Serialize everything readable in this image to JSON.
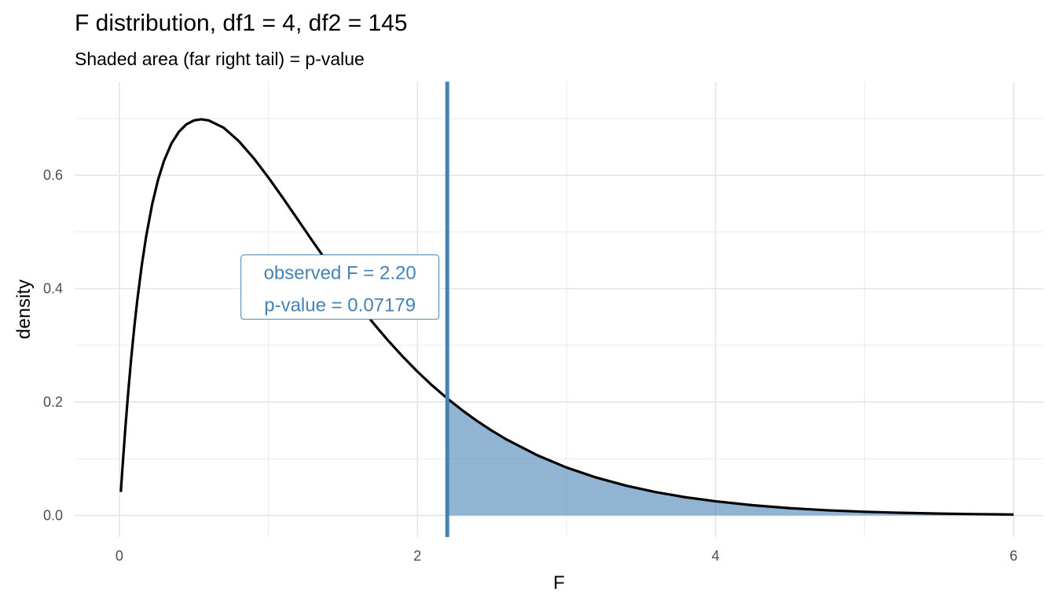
{
  "chart_data": {
    "type": "area",
    "title": "F distribution, df1 = 4, df2 = 145",
    "subtitle": "Shaded area (far right tail) = p-value",
    "xlabel": "F",
    "ylabel": "density",
    "xlim": [
      -0.3,
      6.2
    ],
    "ylim": [
      -0.038,
      0.765
    ],
    "x_ticks": [
      0,
      2,
      4,
      6
    ],
    "x_tick_labels": [
      "0",
      "2",
      "4",
      "6"
    ],
    "y_ticks": [
      0.0,
      0.2,
      0.4,
      0.6
    ],
    "y_tick_labels": [
      "0.0",
      "0.2",
      "0.4",
      "0.6"
    ],
    "grid": true,
    "series": [
      {
        "kind": "density-curve",
        "color": "#000000",
        "x": [
          0.01,
          0.02,
          0.04,
          0.06,
          0.08,
          0.1,
          0.12,
          0.15,
          0.18,
          0.22,
          0.26,
          0.3,
          0.35,
          0.4,
          0.45,
          0.5,
          0.55,
          0.6,
          0.7,
          0.8,
          0.9,
          1.0,
          1.1,
          1.2,
          1.3,
          1.4,
          1.5,
          1.6,
          1.7,
          1.8,
          1.9,
          2.0,
          2.1,
          2.2,
          2.3,
          2.4,
          2.5,
          2.6,
          2.8,
          3.0,
          3.2,
          3.4,
          3.6,
          3.8,
          4.0,
          4.25,
          4.5,
          4.75,
          5.0,
          5.25,
          5.5,
          5.75,
          6.0
        ],
        "y": [
          0.0415,
          0.0809,
          0.1537,
          0.2194,
          0.2785,
          0.3315,
          0.379,
          0.4405,
          0.4925,
          0.5486,
          0.5923,
          0.6257,
          0.6563,
          0.6768,
          0.6898,
          0.6966,
          0.6986,
          0.6966,
          0.6837,
          0.6606,
          0.6305,
          0.596,
          0.5589,
          0.5207,
          0.4824,
          0.4447,
          0.4082,
          0.3734,
          0.3404,
          0.3094,
          0.2806,
          0.2538,
          0.229,
          0.2064,
          0.1857,
          0.1666,
          0.1494,
          0.1337,
          0.1067,
          0.0846,
          0.0669,
          0.0526,
          0.0412,
          0.0321,
          0.0251,
          0.0181,
          0.0129,
          0.0092,
          0.0066,
          0.0047,
          0.0034,
          0.0024,
          0.0017
        ]
      }
    ],
    "shaded_region": {
      "from": 2.2,
      "to": 6.0,
      "color": "#4682b4"
    },
    "observed_line": {
      "x": 2.2,
      "color": "#4682b4"
    },
    "annotation": {
      "lines": [
        "observed F = 2.20",
        "p-value = 0.07179"
      ],
      "x": 1.48,
      "y": 0.4,
      "color": "#4682b4"
    }
  }
}
